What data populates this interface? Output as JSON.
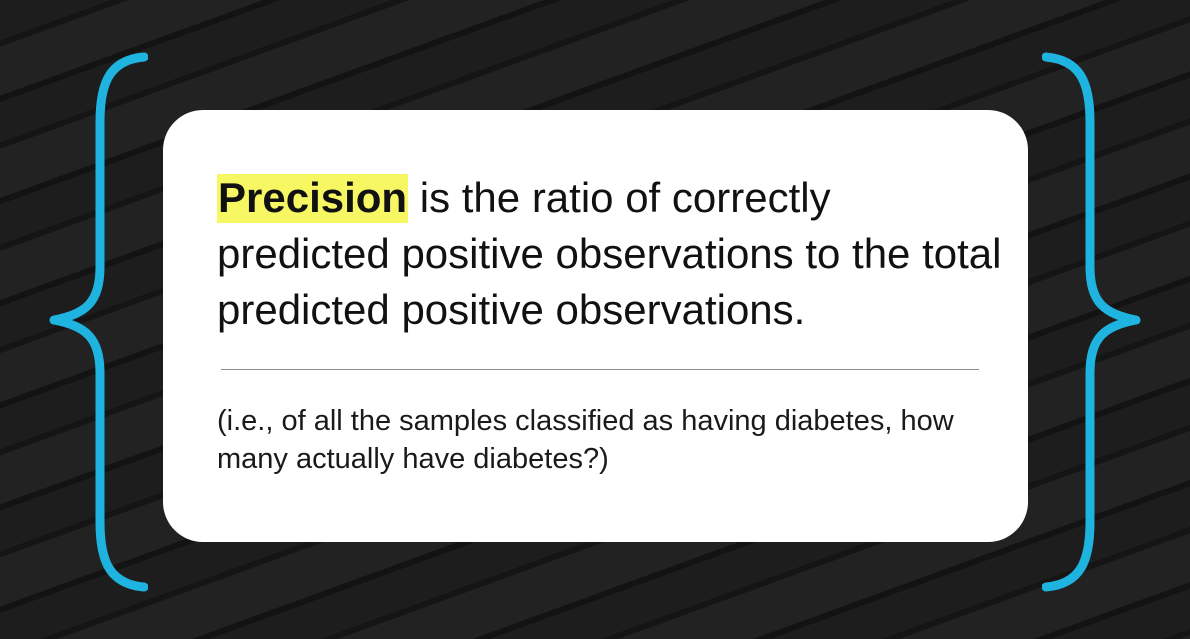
{
  "slide": {
    "definition": {
      "term": "Precision",
      "text": " is the ratio of correctly predicted positive observations to the total predicted positive observations."
    },
    "example": "(i.e., of all the samples classified as having diabetes, how many actually have diabetes?)"
  },
  "colors": {
    "background": "#1b1b1b",
    "card": "#ffffff",
    "brace": "#1fb3e0",
    "highlight": "#f7f764",
    "divider": "#8d8d8d"
  }
}
